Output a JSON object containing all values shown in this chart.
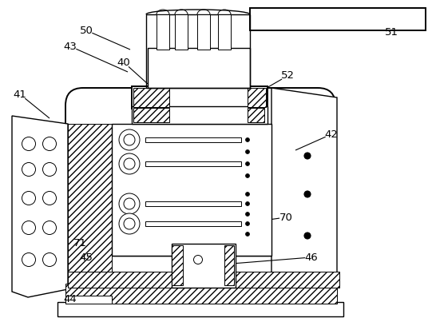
{
  "bg_color": "#ffffff",
  "line_color": "#000000",
  "lw_thin": 0.7,
  "lw_med": 1.0,
  "lw_thick": 1.4,
  "label_fontsize": 9.5,
  "labels_info": [
    [
      "50",
      108,
      38,
      163,
      62
    ],
    [
      "43",
      88,
      58,
      160,
      90
    ],
    [
      "40",
      155,
      78,
      185,
      105
    ],
    [
      "41",
      25,
      118,
      62,
      148
    ],
    [
      "52",
      360,
      95,
      320,
      118
    ],
    [
      "42",
      415,
      168,
      370,
      188
    ],
    [
      "70",
      358,
      272,
      300,
      280
    ],
    [
      "71",
      100,
      305,
      128,
      323
    ],
    [
      "45",
      108,
      322,
      140,
      335
    ],
    [
      "46",
      390,
      322,
      290,
      330
    ],
    [
      "44",
      88,
      375,
      148,
      370
    ],
    [
      "51",
      490,
      40,
      430,
      28
    ]
  ]
}
